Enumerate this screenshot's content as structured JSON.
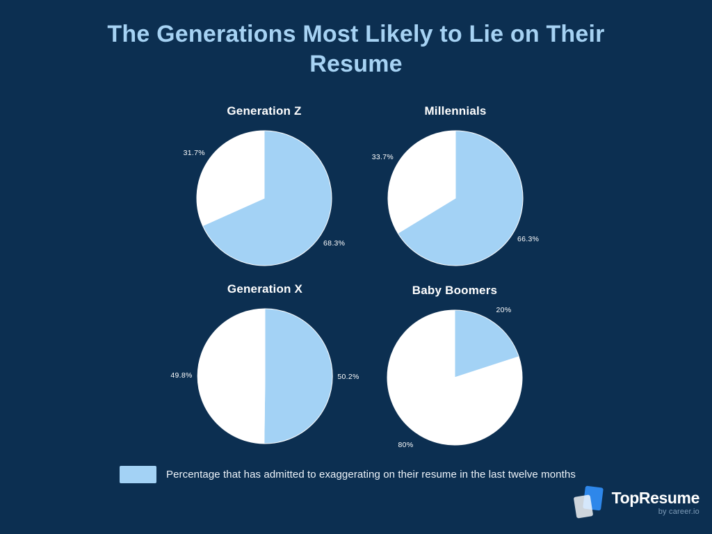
{
  "page": {
    "title": "The Generations Most Likely to Lie on Their Resume",
    "background_color": "#0c2f51",
    "title_color": "#a6d2f3"
  },
  "chart_data": [
    {
      "type": "pie",
      "title": "Generation Z",
      "start_angle_deg": 0,
      "clockwise": true,
      "slices": [
        {
          "label": "68.3%",
          "value": 68.3,
          "color": "#a3d2f5"
        },
        {
          "label": "31.7%",
          "value": 31.7,
          "color": "#ffffff"
        }
      ]
    },
    {
      "type": "pie",
      "title": "Millennials",
      "start_angle_deg": 0,
      "clockwise": true,
      "slices": [
        {
          "label": "66.3%",
          "value": 66.3,
          "color": "#a3d2f5"
        },
        {
          "label": "33.7%",
          "value": 33.7,
          "color": "#ffffff"
        }
      ]
    },
    {
      "type": "pie",
      "title": "Generation X",
      "start_angle_deg": 0,
      "clockwise": true,
      "slices": [
        {
          "label": "50.2%",
          "value": 50.2,
          "color": "#a3d2f5"
        },
        {
          "label": "49.8%",
          "value": 49.8,
          "color": "#ffffff"
        }
      ]
    },
    {
      "type": "pie",
      "title": "Baby Boomers",
      "start_angle_deg": 0,
      "clockwise": true,
      "slices": [
        {
          "label": "20%",
          "value": 20,
          "color": "#a3d2f5"
        },
        {
          "label": "80%",
          "value": 80,
          "color": "#ffffff"
        }
      ]
    }
  ],
  "legend": {
    "swatch_color": "#a3d2f5",
    "label": "Percentage that has admitted to exaggerating on their resume in the last twelve months"
  },
  "footer_logo": {
    "brand": "TopResume",
    "byline": "by career.io",
    "mark_blue": "#2e87ea"
  }
}
